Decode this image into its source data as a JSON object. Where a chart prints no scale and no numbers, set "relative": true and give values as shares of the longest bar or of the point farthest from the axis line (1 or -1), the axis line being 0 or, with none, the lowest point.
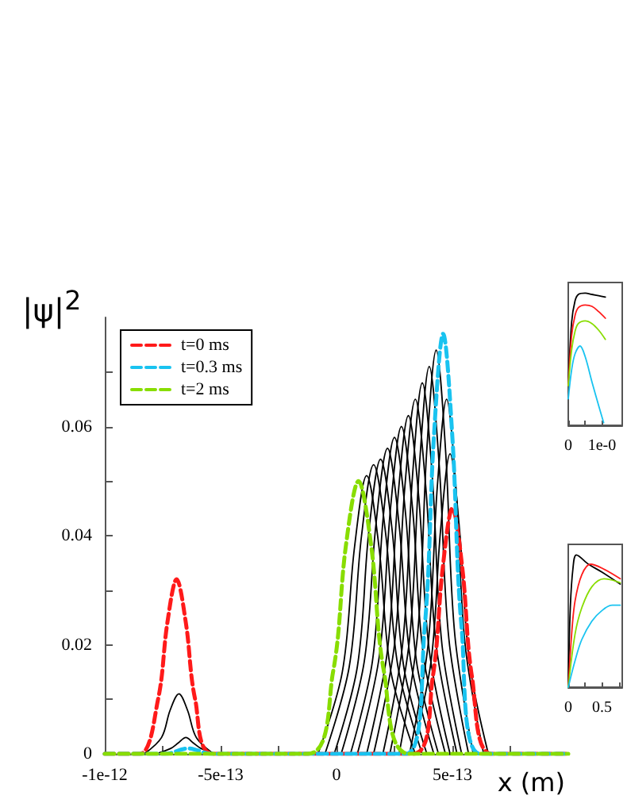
{
  "chart_data": [
    {
      "type": "line",
      "xlabel": "x (m)",
      "ylabel": "|ψ|$^{2}$",
      "xlim": [
        -1e-12,
        1e-12
      ],
      "ylim": [
        0,
        0.08
      ],
      "xticks": [
        -1e-12,
        {
          "value": -7.5e-13,
          "label": null
        },
        -5e-13,
        {
          "value": -2.5e-13,
          "label": null
        },
        0,
        {
          "value": 2.5e-13,
          "label": null
        },
        5e-13,
        {
          "value": 7.5e-13,
          "label": null
        }
      ],
      "yticks": [
        0,
        {
          "value": 0.01,
          "label": null
        },
        0.02,
        {
          "value": 0.03,
          "label": null
        },
        0.04,
        {
          "value": 0.05,
          "label": null
        },
        0.06,
        {
          "value": 0.07,
          "label": null
        }
      ],
      "grid": false,
      "legend": "top left",
      "marker": "none",
      "line_style": "solid",
      "series": [
        {
          "color": "#000000",
          "x": [
            -8.3e-13,
            -7.55e-13,
            -7.18e-13,
            -6.8e-13,
            -6.43e-13,
            -6.05e-13,
            -5.3e-13
          ],
          "values": [
            0,
            0.003,
            0.008,
            0.011,
            0.008,
            0.003,
            0
          ]
        },
        {
          "color": "#000000",
          "x": [
            -7.8e-13,
            -7.15e-13,
            -6.83e-13,
            -6.5e-13,
            -6.18e-13,
            -5.85e-13,
            -5.2e-13
          ],
          "values": [
            0,
            0.001,
            0.002,
            0.003,
            0.002,
            0.001,
            0
          ]
        },
        {
          "color": "#000000",
          "x": [
            -8e-14,
            2.5e-14,
            7.8e-14,
            1.3e-13,
            1.83e-13,
            2.35e-13,
            3.4e-13
          ],
          "values": [
            0,
            0.015,
            0.038,
            0.051,
            0.038,
            0.015,
            0
          ]
        },
        {
          "color": "#000000",
          "x": [
            -5e-14,
            5.5e-14,
            1.08e-13,
            1.6e-13,
            2.13e-13,
            2.65e-13,
            3.7e-13
          ],
          "values": [
            0,
            0.016,
            0.04,
            0.053,
            0.04,
            0.016,
            0
          ]
        },
        {
          "color": "#000000",
          "x": [
            -1e-14,
            9e-14,
            1.4e-13,
            1.9e-13,
            2.4e-13,
            2.9e-13,
            3.9e-13
          ],
          "values": [
            0,
            0.016,
            0.041,
            0.054,
            0.041,
            0.016,
            0
          ]
        },
        {
          "color": "#000000",
          "x": [
            2e-14,
            1.2e-13,
            1.7e-13,
            2.2e-13,
            2.7e-13,
            3.2e-13,
            4.2e-13
          ],
          "values": [
            0,
            0.017,
            0.042,
            0.056,
            0.042,
            0.017,
            0
          ]
        },
        {
          "color": "#000000",
          "x": [
            6e-14,
            1.55e-13,
            2.03e-13,
            2.5e-13,
            2.98e-13,
            3.45e-13,
            4.4e-13
          ],
          "values": [
            0,
            0.017,
            0.044,
            0.058,
            0.044,
            0.017,
            0
          ]
        },
        {
          "color": "#000000",
          "x": [
            9e-14,
            1.85e-13,
            2.33e-13,
            2.8e-13,
            3.28e-13,
            3.75e-13,
            4.7e-13
          ],
          "values": [
            0,
            0.018,
            0.045,
            0.06,
            0.045,
            0.018,
            0
          ]
        },
        {
          "color": "#000000",
          "x": [
            1.3e-13,
            2.2e-13,
            2.65e-13,
            3.1e-13,
            3.55e-13,
            4e-13,
            4.9e-13
          ],
          "values": [
            0,
            0.019,
            0.047,
            0.062,
            0.047,
            0.019,
            0
          ]
        },
        {
          "color": "#000000",
          "x": [
            1.6e-13,
            2.5e-13,
            2.95e-13,
            3.4e-13,
            3.85e-13,
            4.3e-13,
            5.2e-13
          ],
          "values": [
            0,
            0.02,
            0.049,
            0.065,
            0.049,
            0.02,
            0
          ]
        },
        {
          "color": "#000000",
          "x": [
            2e-13,
            2.85e-13,
            3.28e-13,
            3.7e-13,
            4.13e-13,
            4.55e-13,
            5.4e-13
          ],
          "values": [
            0,
            0.02,
            0.051,
            0.068,
            0.051,
            0.02,
            0
          ]
        },
        {
          "color": "#000000",
          "x": [
            2.3e-13,
            3.15e-13,
            3.58e-13,
            4e-13,
            4.43e-13,
            4.85e-13,
            5.7e-13
          ],
          "values": [
            0,
            0.021,
            0.053,
            0.071,
            0.053,
            0.021,
            0
          ]
        },
        {
          "color": "#000000",
          "x": [
            2.7e-13,
            3.5e-13,
            3.9e-13,
            4.3e-13,
            4.7e-13,
            5.1e-13,
            5.9e-13
          ],
          "values": [
            0,
            0.022,
            0.056,
            0.074,
            0.056,
            0.022,
            0
          ]
        },
        {
          "color": "#000000",
          "x": [
            3.15e-13,
            3.95e-13,
            4.35e-13,
            4.75e-13,
            5.15e-13,
            5.55e-13,
            6.35e-13
          ],
          "values": [
            0,
            0.02,
            0.049,
            0.065,
            0.049,
            0.02,
            0
          ]
        },
        {
          "color": "#000000",
          "x": [
            3.25e-13,
            4.08e-13,
            4.49e-13,
            4.9e-13,
            5.31e-13,
            5.73e-13,
            6.55e-13
          ],
          "values": [
            0,
            0.017,
            0.041,
            0.055,
            0.041,
            0.017,
            0
          ]
        },
        {
          "name": "t=0 ms",
          "color": "#ff1a1a",
          "line_style": "dashed",
          "x": [
            -1e-12,
            -8.5e-13,
            -7.7e-13,
            -7.3e-13,
            -6.9e-13,
            -6.5e-13,
            -6.1e-13,
            -5.3e-13,
            3.3e-13,
            4.15e-13,
            4.58e-13,
            5e-13,
            5.43e-13,
            5.85e-13,
            6.7e-13,
            1e-12
          ],
          "values": [
            0,
            0,
            0.01,
            0.024,
            0.032,
            0.024,
            0.01,
            0,
            0,
            0.014,
            0.034,
            0.045,
            0.034,
            0.014,
            0,
            0
          ]
        },
        {
          "name": "t=0.3 ms",
          "color": "#19c3f0",
          "line_style": "dashed",
          "x": [
            -1e-12,
            -7.4e-13,
            -6.4e-13,
            -5.4e-13,
            3e-13,
            3.8e-13,
            4.2e-13,
            4.6e-13,
            5e-13,
            5.4e-13,
            6.2e-13,
            1e-12
          ],
          "values": [
            0,
            0,
            0.001,
            0,
            0,
            0.023,
            0.058,
            0.077,
            0.058,
            0.023,
            0,
            0
          ]
        },
        {
          "name": "t=2 ms",
          "color": "#88dd00",
          "line_style": "dashed",
          "x": [
            -1e-12,
            -1.25e-13,
            -1.5e-14,
            4e-14,
            9.5e-14,
            1.5e-13,
            2.05e-13,
            3.15e-13,
            1e-12
          ],
          "values": [
            0,
            0,
            0.015,
            0.038,
            0.05,
            0.038,
            0.015,
            0,
            0
          ]
        }
      ]
    },
    {
      "type": "line",
      "relative": true,
      "xlim": [
        0,
        1.6
      ],
      "xticks": [
        0,
        {
          "value": 0.5,
          "label": null
        },
        {
          "value": 1,
          "label": "1e-0"
        }
      ],
      "marker": "none",
      "line_style": "solid",
      "series": [
        {
          "color": "#000000",
          "x": [
            0,
            0.1,
            0.2,
            0.3,
            0.5,
            0.7,
            0.9,
            1.1
          ],
          "values": [
            0.3,
            0.78,
            0.94,
            0.99,
            1,
            0.99,
            0.98,
            0.97
          ]
        },
        {
          "color": "#ff1a1a",
          "x": [
            0,
            0.1,
            0.2,
            0.3,
            0.5,
            0.7,
            0.9,
            1.1
          ],
          "values": [
            0.3,
            0.68,
            0.83,
            0.89,
            0.91,
            0.9,
            0.86,
            0.81
          ]
        },
        {
          "color": "#88dd00",
          "x": [
            0,
            0.1,
            0.2,
            0.3,
            0.5,
            0.7,
            0.9,
            1.1
          ],
          "values": [
            0.3,
            0.57,
            0.71,
            0.77,
            0.79,
            0.77,
            0.72,
            0.65
          ]
        },
        {
          "color": "#19c3f0",
          "x": [
            0,
            0.1,
            0.2,
            0.35,
            0.5,
            0.7,
            0.9,
            1.05
          ],
          "values": [
            0.2,
            0.42,
            0.54,
            0.6,
            0.52,
            0.33,
            0.15,
            0.02
          ]
        }
      ]
    },
    {
      "type": "line",
      "relative": true,
      "xlim": [
        0,
        0.8
      ],
      "xticks": [
        0,
        {
          "value": 0.25,
          "label": null
        },
        0.5,
        {
          "value": 0.75,
          "label": null
        }
      ],
      "marker": "none",
      "line_style": "solid",
      "series": [
        {
          "color": "#000000",
          "x": [
            0,
            0.03,
            0.07,
            0.12,
            0.3,
            0.5,
            0.77
          ],
          "values": [
            0,
            0.6,
            0.9,
            1,
            0.93,
            0.87,
            0.78
          ]
        },
        {
          "color": "#ff1a1a",
          "x": [
            0,
            0.05,
            0.1,
            0.2,
            0.33,
            0.5,
            0.77
          ],
          "values": [
            0,
            0.4,
            0.65,
            0.85,
            0.93,
            0.9,
            0.82
          ]
        },
        {
          "color": "#88dd00",
          "x": [
            0,
            0.1,
            0.2,
            0.35,
            0.53,
            0.65,
            0.77
          ],
          "values": [
            0,
            0.4,
            0.6,
            0.76,
            0.82,
            0.81,
            0.79
          ]
        },
        {
          "color": "#19c3f0",
          "x": [
            0,
            0.1,
            0.2,
            0.35,
            0.5,
            0.65,
            0.77
          ],
          "values": [
            0,
            0.2,
            0.36,
            0.5,
            0.58,
            0.62,
            0.62
          ]
        }
      ]
    }
  ]
}
